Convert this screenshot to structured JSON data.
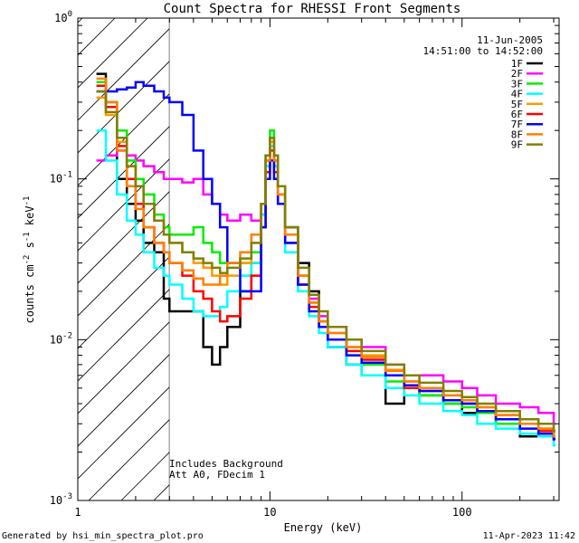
{
  "chart_data": {
    "type": "line",
    "title": "Count Spectra for RHESSI Front Segments",
    "xlabel": "Energy (keV)",
    "ylabel_main": "counts cm",
    "ylabel_exp1": "-2",
    "ylabel_s": " s",
    "ylabel_exp2": "-1",
    "ylabel_kev": " keV",
    "ylabel_exp3": "-1",
    "x_scale": "log",
    "y_scale": "log",
    "xlim": [
      1,
      320
    ],
    "ylim": [
      0.001,
      1
    ],
    "x_ticks": [
      {
        "value": 1,
        "label": "1"
      },
      {
        "value": 10,
        "label": "10"
      },
      {
        "value": 100,
        "label": "100"
      }
    ],
    "y_ticks": [
      {
        "value": 1,
        "base": "10",
        "exp": "0"
      },
      {
        "value": 0.1,
        "base": "10",
        "exp": "-1"
      },
      {
        "value": 0.01,
        "base": "10",
        "exp": "-2"
      },
      {
        "value": 0.001,
        "base": "10",
        "exp": "-3"
      }
    ],
    "date": "11-Jun-2005",
    "time_range": "14:51:00 to 14:52:00",
    "annotation_lines": [
      "Includes Background",
      "Att A0, FDecim 1"
    ],
    "hatched_region_xmax": 3,
    "series": [
      {
        "name": "1F",
        "color": "#000000",
        "x": [
          1.25,
          1.4,
          1.6,
          1.8,
          2.0,
          2.2,
          2.5,
          2.8,
          3.0,
          4.0,
          4.5,
          5.0,
          5.5,
          6.0,
          7.0,
          8.0,
          9.0,
          9.5,
          10.0,
          10.5,
          11.0,
          12,
          14,
          16,
          18,
          20,
          25,
          30,
          40,
          50,
          60,
          80,
          100,
          120,
          150,
          200,
          250,
          300
        ],
        "values": [
          0.45,
          0.3,
          0.1,
          0.07,
          0.055,
          0.04,
          0.035,
          0.018,
          0.015,
          0.015,
          0.009,
          0.007,
          0.009,
          0.012,
          0.02,
          0.03,
          0.06,
          0.13,
          0.17,
          0.13,
          0.09,
          0.05,
          0.03,
          0.02,
          0.013,
          0.009,
          0.007,
          0.006,
          0.004,
          0.005,
          0.0045,
          0.004,
          0.0035,
          0.0035,
          0.003,
          0.0025,
          0.0025,
          0.0025
        ]
      },
      {
        "name": "2F",
        "color": "#ff00ff",
        "x": [
          1.25,
          1.4,
          1.6,
          1.8,
          2.0,
          2.2,
          2.5,
          2.8,
          3.0,
          3.5,
          4.0,
          4.5,
          5.0,
          5.5,
          6.0,
          7.0,
          8.0,
          9.0,
          9.5,
          10.0,
          10.5,
          11.0,
          12,
          14,
          16,
          18,
          20,
          25,
          30,
          40,
          50,
          60,
          80,
          100,
          120,
          150,
          200,
          250,
          300
        ],
        "values": [
          0.13,
          0.14,
          0.15,
          0.14,
          0.13,
          0.12,
          0.11,
          0.1,
          0.1,
          0.095,
          0.1,
          0.08,
          0.07,
          0.06,
          0.055,
          0.06,
          0.055,
          0.07,
          0.12,
          0.16,
          0.12,
          0.08,
          0.04,
          0.025,
          0.018,
          0.014,
          0.012,
          0.01,
          0.009,
          0.007,
          0.006,
          0.006,
          0.0055,
          0.005,
          0.0045,
          0.004,
          0.0038,
          0.0035,
          0.003
        ]
      },
      {
        "name": "3F",
        "color": "#00ee00",
        "x": [
          1.25,
          1.4,
          1.6,
          1.8,
          2.0,
          2.2,
          2.5,
          2.8,
          3.0,
          3.5,
          4.0,
          4.5,
          5.0,
          5.5,
          6.0,
          7.0,
          8.0,
          9.0,
          9.5,
          10.0,
          10.5,
          11.0,
          12,
          14,
          16,
          18,
          20,
          25,
          30,
          40,
          50,
          60,
          80,
          100,
          120,
          150,
          200,
          250,
          300
        ],
        "values": [
          0.4,
          0.3,
          0.2,
          0.13,
          0.1,
          0.08,
          0.06,
          0.05,
          0.045,
          0.045,
          0.05,
          0.04,
          0.035,
          0.03,
          0.03,
          0.03,
          0.035,
          0.06,
          0.14,
          0.2,
          0.14,
          0.09,
          0.045,
          0.025,
          0.017,
          0.013,
          0.01,
          0.008,
          0.007,
          0.0055,
          0.005,
          0.0045,
          0.004,
          0.0038,
          0.0035,
          0.003,
          0.003,
          0.0028,
          0.0025
        ]
      },
      {
        "name": "4F",
        "color": "#00ffff",
        "x": [
          1.25,
          1.4,
          1.6,
          1.8,
          2.0,
          2.2,
          2.5,
          2.8,
          3.0,
          3.5,
          4.0,
          4.5,
          5.0,
          5.5,
          6.0,
          7.0,
          8.0,
          9.0,
          9.5,
          10.0,
          10.5,
          11.0,
          12,
          14,
          16,
          18,
          20,
          25,
          30,
          40,
          50,
          60,
          80,
          100,
          120,
          150,
          200,
          250,
          300
        ],
        "values": [
          0.2,
          0.13,
          0.08,
          0.055,
          0.045,
          0.035,
          0.028,
          0.025,
          0.022,
          0.018,
          0.015,
          0.014,
          0.014,
          0.016,
          0.02,
          0.025,
          0.03,
          0.06,
          0.12,
          0.16,
          0.12,
          0.07,
          0.035,
          0.02,
          0.014,
          0.011,
          0.009,
          0.007,
          0.006,
          0.005,
          0.0045,
          0.004,
          0.0036,
          0.0034,
          0.003,
          0.0028,
          0.0026,
          0.0025,
          0.0022
        ]
      },
      {
        "name": "5F",
        "color": "#ff9900",
        "x": [
          1.25,
          1.4,
          1.6,
          1.8,
          2.0,
          2.2,
          2.5,
          2.8,
          3.0,
          3.5,
          4.0,
          4.5,
          5.0,
          5.5,
          6.0,
          7.0,
          8.0,
          9.0,
          9.5,
          10.0,
          10.5,
          11.0,
          12,
          14,
          16,
          18,
          20,
          25,
          30,
          40,
          50,
          60,
          80,
          100,
          120,
          150,
          200,
          250,
          300
        ],
        "values": [
          0.32,
          0.25,
          0.17,
          0.12,
          0.09,
          0.07,
          0.055,
          0.045,
          0.04,
          0.035,
          0.03,
          0.028,
          0.025,
          0.022,
          0.025,
          0.03,
          0.04,
          0.07,
          0.13,
          0.17,
          0.13,
          0.08,
          0.045,
          0.025,
          0.017,
          0.013,
          0.011,
          0.009,
          0.008,
          0.0065,
          0.0055,
          0.005,
          0.0045,
          0.004,
          0.0038,
          0.0034,
          0.003,
          0.0028,
          0.0025
        ]
      },
      {
        "name": "6F",
        "color": "#ff0000",
        "x": [
          1.25,
          1.4,
          1.6,
          1.8,
          2.0,
          2.2,
          2.5,
          2.8,
          3.0,
          3.5,
          4.0,
          4.5,
          5.0,
          5.5,
          6.0,
          7.0,
          8.0,
          9.0,
          9.5,
          10.0,
          10.5,
          11.0,
          12,
          14,
          16,
          18,
          20,
          25,
          30,
          40,
          50,
          60,
          80,
          100,
          120,
          150,
          200,
          250,
          300
        ],
        "values": [
          0.38,
          0.28,
          0.16,
          0.1,
          0.07,
          0.05,
          0.04,
          0.035,
          0.03,
          0.025,
          0.02,
          0.018,
          0.015,
          0.013,
          0.014,
          0.018,
          0.025,
          0.05,
          0.11,
          0.15,
          0.11,
          0.07,
          0.04,
          0.022,
          0.016,
          0.012,
          0.01,
          0.0085,
          0.0075,
          0.006,
          0.005,
          0.0048,
          0.0042,
          0.004,
          0.0036,
          0.0032,
          0.003,
          0.0027,
          0.0024
        ]
      },
      {
        "name": "7F",
        "color": "#0000ff",
        "x": [
          1.25,
          1.4,
          1.6,
          1.8,
          2.0,
          2.2,
          2.5,
          2.8,
          3.0,
          3.5,
          4.0,
          4.5,
          5.0,
          5.5,
          6.0,
          7.0,
          8.0,
          9.0,
          9.5,
          10.0,
          10.5,
          11.0,
          12,
          14,
          16,
          18,
          20,
          25,
          30,
          40,
          50,
          60,
          80,
          100,
          120,
          150,
          200,
          250,
          300
        ],
        "values": [
          0.35,
          0.35,
          0.36,
          0.37,
          0.4,
          0.38,
          0.35,
          0.32,
          0.3,
          0.25,
          0.15,
          0.1,
          0.07,
          0.05,
          0.03,
          0.02,
          0.02,
          0.05,
          0.1,
          0.13,
          0.1,
          0.07,
          0.04,
          0.022,
          0.015,
          0.012,
          0.01,
          0.008,
          0.0072,
          0.006,
          0.0052,
          0.0048,
          0.0042,
          0.004,
          0.0036,
          0.0032,
          0.0028,
          0.0026,
          0.0024
        ]
      },
      {
        "name": "8F",
        "color": "#ff7f00",
        "x": [
          1.25,
          1.4,
          1.6,
          1.8,
          2.0,
          2.2,
          2.5,
          2.8,
          3.0,
          3.5,
          4.0,
          4.5,
          5.0,
          5.5,
          6.0,
          7.0,
          8.0,
          9.0,
          9.5,
          10.0,
          10.5,
          11.0,
          12,
          14,
          16,
          18,
          20,
          25,
          30,
          40,
          50,
          60,
          80,
          100,
          120,
          150,
          200,
          250,
          300
        ],
        "values": [
          0.42,
          0.3,
          0.15,
          0.09,
          0.065,
          0.05,
          0.04,
          0.035,
          0.03,
          0.027,
          0.024,
          0.022,
          0.022,
          0.025,
          0.03,
          0.035,
          0.045,
          0.07,
          0.13,
          0.18,
          0.13,
          0.08,
          0.045,
          0.025,
          0.017,
          0.013,
          0.011,
          0.009,
          0.0078,
          0.0064,
          0.0055,
          0.005,
          0.0045,
          0.0042,
          0.0038,
          0.0034,
          0.003,
          0.0028,
          0.0025
        ]
      },
      {
        "name": "9F",
        "color": "#808000",
        "x": [
          1.25,
          1.4,
          1.6,
          1.8,
          2.0,
          2.2,
          2.5,
          2.8,
          3.0,
          3.5,
          4.0,
          4.5,
          5.0,
          5.5,
          6.0,
          7.0,
          8.0,
          9.0,
          9.5,
          10.0,
          10.5,
          11.0,
          12,
          14,
          16,
          18,
          20,
          25,
          30,
          40,
          50,
          60,
          80,
          100,
          120,
          150,
          200,
          250,
          300
        ],
        "values": [
          0.35,
          0.26,
          0.18,
          0.12,
          0.09,
          0.07,
          0.055,
          0.045,
          0.04,
          0.035,
          0.032,
          0.03,
          0.028,
          0.026,
          0.028,
          0.032,
          0.04,
          0.07,
          0.14,
          0.18,
          0.14,
          0.09,
          0.05,
          0.028,
          0.019,
          0.015,
          0.012,
          0.01,
          0.0085,
          0.007,
          0.006,
          0.0054,
          0.0048,
          0.0044,
          0.004,
          0.0036,
          0.0032,
          0.003,
          0.0027
        ]
      }
    ]
  },
  "footer": {
    "generator": "Generated by hsi_min_spectra_plot.pro",
    "timestamp": "11-Apr-2023 11:42"
  }
}
